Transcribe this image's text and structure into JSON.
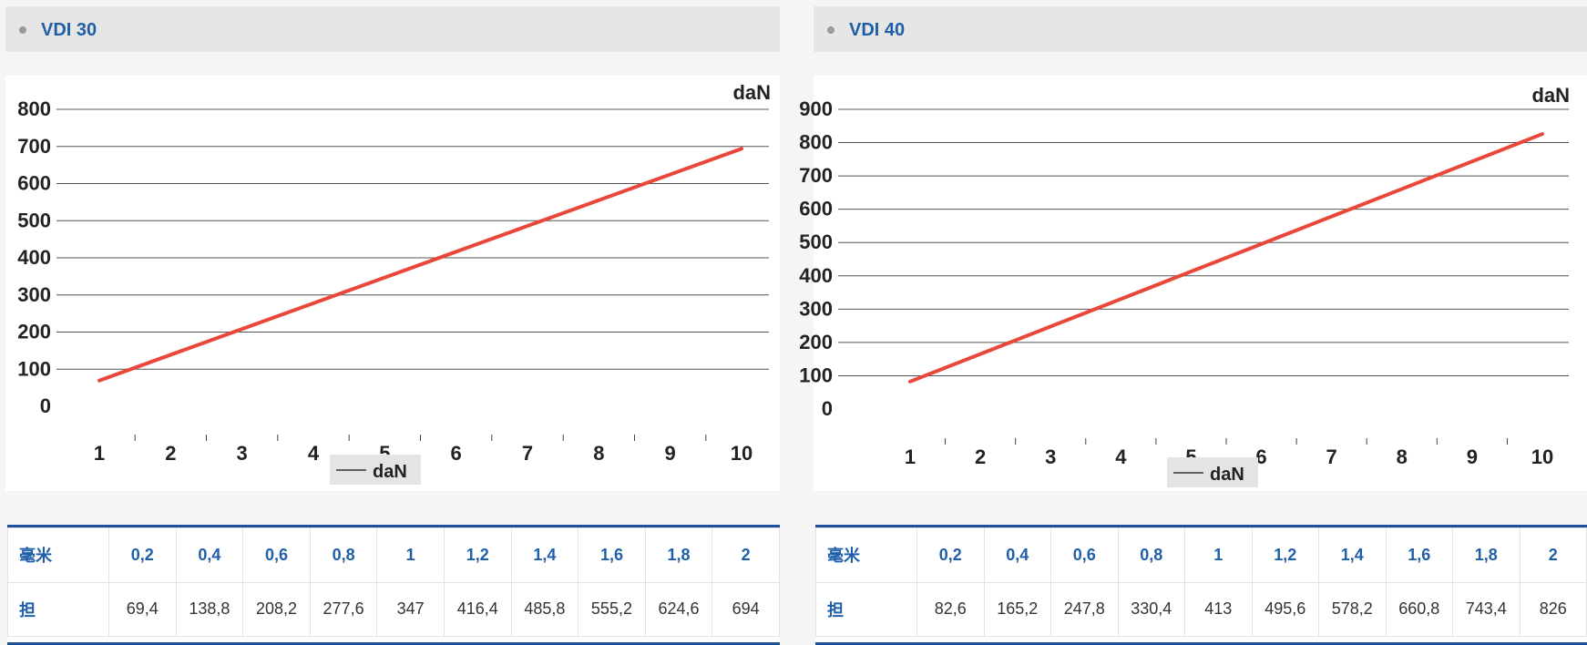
{
  "panels": [
    {
      "title": "VDI 30",
      "table": {
        "row_labels": [
          "毫米",
          "担"
        ],
        "mm": [
          "0,2",
          "0,4",
          "0,6",
          "0,8",
          "1",
          "1,2",
          "1,4",
          "1,6",
          "1,8",
          "2"
        ],
        "dan": [
          "69,4",
          "138,8",
          "208,2",
          "277,6",
          "347",
          "416,4",
          "485,8",
          "555,2",
          "624,6",
          "694"
        ]
      }
    },
    {
      "title": "VDI 40",
      "table": {
        "row_labels": [
          "毫米",
          "担"
        ],
        "mm": [
          "0,2",
          "0,4",
          "0,6",
          "0,8",
          "1",
          "1,2",
          "1,4",
          "1,6",
          "1,8",
          "2"
        ],
        "dan": [
          "82,6",
          "165,2",
          "247,8",
          "330,4",
          "413",
          "495,6",
          "578,2",
          "660,8",
          "743,4",
          "826"
        ]
      }
    }
  ],
  "chart_data": [
    {
      "type": "line",
      "unit_label": "daN",
      "categories": [
        "1",
        "2",
        "3",
        "4",
        "5",
        "6",
        "7",
        "8",
        "9",
        "10"
      ],
      "series": [
        {
          "name": "daN",
          "color": "#e8473a",
          "values": [
            69.4,
            138.8,
            208.2,
            277.6,
            347,
            416.4,
            485.8,
            555.2,
            624.6,
            694
          ]
        }
      ],
      "yticks": [
        0,
        100,
        200,
        300,
        400,
        500,
        600,
        700,
        800
      ],
      "ylim": [
        0,
        800
      ],
      "grid": true,
      "legend": "bottom"
    },
    {
      "type": "line",
      "unit_label": "daN",
      "categories": [
        "1",
        "2",
        "3",
        "4",
        "5",
        "6",
        "7",
        "8",
        "9",
        "10"
      ],
      "series": [
        {
          "name": "daN",
          "color": "#e8473a",
          "values": [
            82.6,
            165.2,
            247.8,
            330.4,
            413,
            495.6,
            578.2,
            660.8,
            743.4,
            826
          ]
        }
      ],
      "yticks": [
        0,
        100,
        200,
        300,
        400,
        500,
        600,
        700,
        800,
        900
      ],
      "ylim": [
        0,
        900
      ],
      "grid": true,
      "legend": "bottom"
    }
  ]
}
